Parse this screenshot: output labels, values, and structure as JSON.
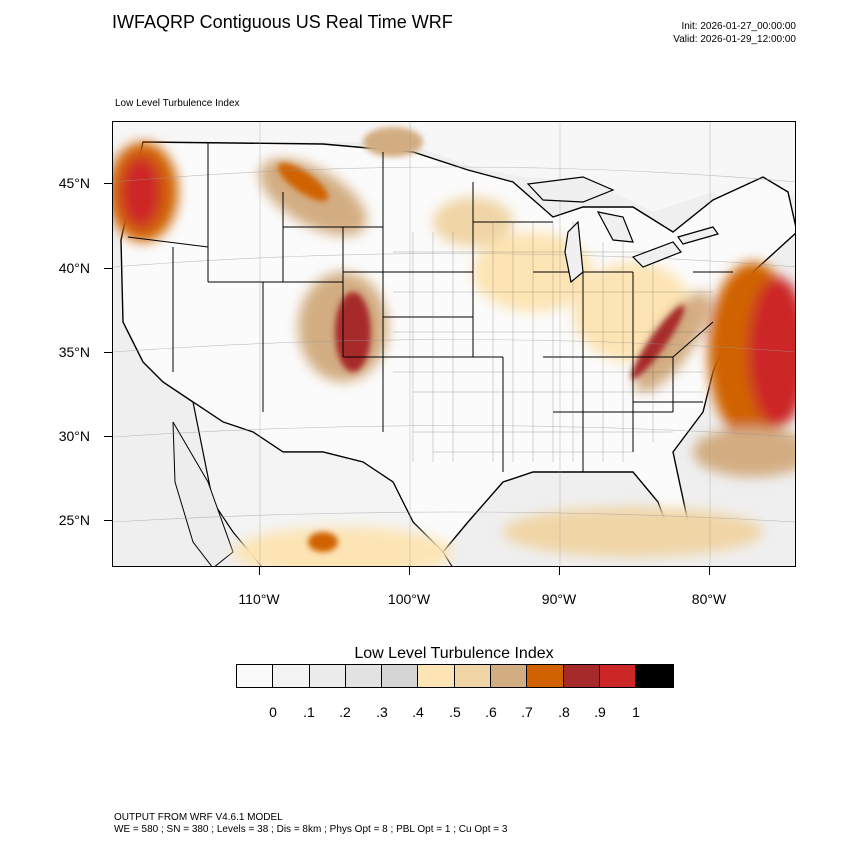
{
  "header": {
    "title": "IWFAQRP Contiguous US Real Time WRF",
    "init": "Init: 2026-01-27_00:00:00",
    "valid": "Valid: 2026-01-29_12:00:00",
    "subtitle": "Low Level Turbulence Index"
  },
  "axes": {
    "lat_labels": [
      "45°N",
      "40°N",
      "35°N",
      "30°N",
      "25°N"
    ],
    "lon_labels": [
      "110°W",
      "100°W",
      "90°W",
      "80°W"
    ]
  },
  "legend": {
    "title": "Low Level Turbulence Index",
    "ticks": [
      "0",
      ".1",
      ".2",
      ".3",
      ".4",
      ".5",
      ".6",
      ".7",
      ".8",
      ".9",
      "1"
    ],
    "colors": [
      "#fafafa",
      "#f3f3f3",
      "#ececec",
      "#e2e2e2",
      "#d5d5d5",
      "#fde4b4",
      "#f0d5a6",
      "#d3ad82",
      "#d06200",
      "#a72a2a",
      "#cc2626",
      "#000000"
    ]
  },
  "footer": {
    "line1": "OUTPUT FROM WRF V4.6.1 MODEL",
    "line2": "WE = 580 ; SN = 380 ; Levels = 38 ; Dis = 8km ; Phys Opt = 8 ; PBL Opt = 1 ; Cu Opt = 3"
  }
}
